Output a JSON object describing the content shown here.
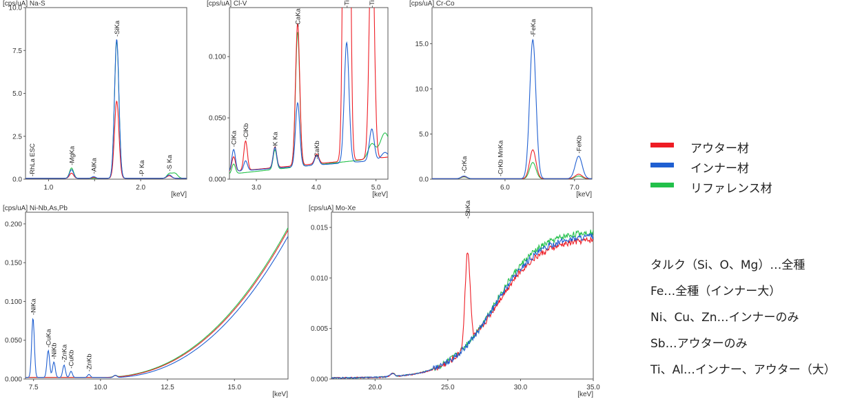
{
  "legend": {
    "items": [
      {
        "label": "アウター材",
        "color": "#ee1c24"
      },
      {
        "label": "インナー材",
        "color": "#1f5fd1"
      },
      {
        "label": "リファレンス材",
        "color": "#22c04a"
      }
    ]
  },
  "notes": [
    "タルク（Si、O、Mg）…全種",
    "Fe…全種（インナー大）",
    "Ni、Cu、Zn…インナーのみ",
    "Sb…アウターのみ",
    "Ti、Al…インナー、アウター（大）"
  ],
  "chart_data": [
    {
      "type": "line",
      "title": "[cps/uA] Na-S",
      "xlabel": "[keV]",
      "xlim": [
        0.75,
        2.5
      ],
      "ylim": [
        0,
        10
      ],
      "xticks": [
        1.0,
        1.5,
        2.0
      ],
      "xtick_labels": [
        "1.0",
        "",
        "2.0"
      ],
      "yticks": [
        0,
        2.5,
        5,
        7.5,
        10
      ],
      "ytick_labels": [
        "0.0",
        "2.5",
        "5.0",
        "7.5",
        "10.0"
      ],
      "baseline": {
        "inner": [
          0.05,
          0
        ],
        "outer": [
          0.05,
          0
        ],
        "reference": [
          0.05,
          0
        ]
      },
      "peaks": {
        "inner": [
          [
            1.25,
            0.5,
            0.022
          ],
          [
            1.49,
            0.1,
            0.02
          ],
          [
            1.74,
            8.1,
            0.024
          ],
          [
            2.31,
            0.2,
            0.025
          ]
        ],
        "outer": [
          [
            1.25,
            0.3,
            0.022
          ],
          [
            1.49,
            0.05,
            0.02
          ],
          [
            1.74,
            4.5,
            0.024
          ],
          [
            2.31,
            0.15,
            0.025
          ]
        ],
        "reference": [
          [
            1.25,
            0.6,
            0.022
          ],
          [
            1.74,
            8.0,
            0.024
          ],
          [
            2.31,
            0.25,
            0.025
          ],
          [
            2.37,
            0.3,
            0.03
          ]
        ]
      },
      "peak_labels": [
        {
          "text": "RhLa ESC",
          "x": 0.82
        },
        {
          "text": "MgKa",
          "x": 1.25
        },
        {
          "text": "AlKa",
          "x": 1.49
        },
        {
          "text": "SiKa",
          "x": 1.74
        },
        {
          "text": "P Ka",
          "x": 2.01
        },
        {
          "text": "S Ka",
          "x": 2.31
        }
      ]
    },
    {
      "type": "line",
      "title": "[cps/uA] Cl-V",
      "xlabel": "[keV]",
      "xlim": [
        2.55,
        5.2
      ],
      "ylim": [
        0,
        0.14
      ],
      "xticks": [
        3.0,
        4.0,
        5.0
      ],
      "xtick_labels": [
        "3.0",
        "4.0",
        "5.0"
      ],
      "yticks": [
        0,
        0.05,
        0.1
      ],
      "ytick_labels": [
        "0.000",
        "0.050",
        "0.100"
      ],
      "baseline": {
        "inner": [
          0.006,
          0.01
        ],
        "outer": [
          0.006,
          0.012
        ],
        "reference": [
          0.004,
          0.014
        ]
      },
      "peaks": {
        "inner": [
          [
            2.62,
            0.018,
            0.03
          ],
          [
            2.82,
            0.008,
            0.03
          ],
          [
            3.31,
            0.017,
            0.03
          ],
          [
            3.69,
            0.052,
            0.035
          ],
          [
            4.01,
            0.008,
            0.035
          ],
          [
            4.51,
            0.098,
            0.04
          ],
          [
            4.93,
            0.026,
            0.04
          ],
          [
            5.15,
            0.006,
            0.06
          ]
        ],
        "outer": [
          [
            2.62,
            0.012,
            0.03
          ],
          [
            2.82,
            0.024,
            0.03
          ],
          [
            3.31,
            0.017,
            0.03
          ],
          [
            3.69,
            0.116,
            0.035
          ],
          [
            4.01,
            0.008,
            0.035
          ],
          [
            4.51,
            0.8,
            0.04
          ],
          [
            4.93,
            0.2,
            0.04
          ]
        ],
        "reference": [
          [
            2.62,
            0.008,
            0.03
          ],
          [
            3.31,
            0.016,
            0.03
          ],
          [
            3.69,
            0.11,
            0.035
          ],
          [
            4.01,
            0.008,
            0.035
          ],
          [
            4.93,
            0.012,
            0.06
          ],
          [
            5.15,
            0.02,
            0.08
          ]
        ]
      },
      "peak_labels": [
        {
          "text": "ClKa",
          "x": 2.62
        },
        {
          "text": "ClKb",
          "x": 2.82
        },
        {
          "text": "K Ka",
          "x": 3.31
        },
        {
          "text": "CaKa",
          "x": 3.69
        },
        {
          "text": "CaKb",
          "x": 4.01
        },
        {
          "text": "TiKa",
          "x": 4.51
        },
        {
          "text": "TiKb",
          "x": 4.93
        }
      ]
    },
    {
      "type": "line",
      "title": "[cps/uA] Cr-Co",
      "xlabel": "[keV]",
      "xlim": [
        4.95,
        7.25
      ],
      "ylim": [
        0,
        19
      ],
      "xticks": [
        6.0,
        7.0
      ],
      "xtick_labels": [
        "6.0",
        "7.0"
      ],
      "yticks": [
        0,
        5,
        10,
        15
      ],
      "ytick_labels": [
        "0.0",
        "5.0",
        "10.0",
        "15.0"
      ],
      "baseline": {
        "inner": [
          0.05,
          0
        ],
        "outer": [
          0.05,
          0
        ],
        "reference": [
          0.05,
          0
        ]
      },
      "peaks": {
        "inner": [
          [
            5.41,
            0.3,
            0.04
          ],
          [
            6.4,
            15.4,
            0.045
          ],
          [
            7.06,
            2.5,
            0.05
          ]
        ],
        "outer": [
          [
            5.41,
            0.25,
            0.04
          ],
          [
            6.4,
            3.2,
            0.045
          ],
          [
            7.06,
            0.5,
            0.05
          ]
        ],
        "reference": [
          [
            5.41,
            0.2,
            0.04
          ],
          [
            6.4,
            1.8,
            0.045
          ],
          [
            7.06,
            0.3,
            0.05
          ]
        ]
      },
      "peak_labels": [
        {
          "text": "CrKa",
          "x": 5.41
        },
        {
          "text": "CrKb MnKa",
          "x": 5.93
        },
        {
          "text": "FeKa",
          "x": 6.4
        },
        {
          "text": "FeKb",
          "x": 7.06
        }
      ]
    },
    {
      "type": "line",
      "title": "[cps/uA] Ni-Nb,As,Pb",
      "xlabel": "[keV]",
      "xlim": [
        7.2,
        17.0
      ],
      "ylim": [
        0,
        0.215
      ],
      "xticks": [
        7.5,
        10.0,
        12.5,
        15.0
      ],
      "xtick_labels": [
        "7.5",
        "10.0",
        "12.5",
        "15.0"
      ],
      "yticks": [
        0,
        0.05,
        0.1,
        0.15,
        0.2
      ],
      "ytick_labels": [
        "0.000",
        "0.050",
        "0.100",
        "0.150",
        "0.200"
      ],
      "bg_curve": {
        "start": 10.0,
        "scale": 0.19,
        "power": 2.3,
        "end": 17.0
      },
      "bg_offset": {
        "inner": -0.008,
        "outer": 0.0,
        "reference": 0.003
      },
      "peaks": {
        "inner": [
          [
            7.48,
            0.077,
            0.05
          ],
          [
            8.05,
            0.035,
            0.05
          ],
          [
            8.26,
            0.02,
            0.05
          ],
          [
            8.64,
            0.016,
            0.05
          ],
          [
            8.9,
            0.008,
            0.05
          ],
          [
            9.57,
            0.004,
            0.05
          ],
          [
            10.55,
            0.003,
            0.06
          ]
        ],
        "outer": [
          [
            10.55,
            0.002,
            0.06
          ]
        ],
        "reference": [
          [
            10.55,
            0.002,
            0.06
          ]
        ]
      },
      "peak_labels": [
        {
          "text": "NiKa",
          "x": 7.48
        },
        {
          "text": "CuKa",
          "x": 8.05
        },
        {
          "text": "NiKb",
          "x": 8.26
        },
        {
          "text": "ZnKa",
          "x": 8.64
        },
        {
          "text": "CuKb",
          "x": 8.9
        },
        {
          "text": "ZnKb",
          "x": 9.57
        }
      ]
    },
    {
      "type": "line",
      "title": "[cps/uA] Mo-Xe",
      "xlabel": "[keV]",
      "xlim": [
        17.0,
        35.0
      ],
      "ylim": [
        0,
        0.0165
      ],
      "xticks": [
        20.0,
        25.0,
        30.0,
        35.0
      ],
      "xtick_labels": [
        "20.0",
        "25.0",
        "30.0",
        "35.0"
      ],
      "yticks": [
        0,
        0.005,
        0.01,
        0.015
      ],
      "ytick_labels": [
        "0.000",
        "0.005",
        "0.010",
        "0.015"
      ],
      "sigmoid": {
        "center": 28.2,
        "width": 1.55,
        "top": 0.0142,
        "base": 0.0001
      },
      "sigmoid_scale": {
        "inner": 1.0,
        "outer": 0.975,
        "reference": 1.03
      },
      "peaks": {
        "inner": [
          [
            21.2,
            0.0003,
            0.15
          ]
        ],
        "outer": [
          [
            21.2,
            0.0003,
            0.15
          ],
          [
            26.36,
            0.0094,
            0.17
          ]
        ],
        "reference": [
          [
            21.2,
            0.0003,
            0.15
          ]
        ]
      },
      "peak_labels": [
        {
          "text": "SbKa",
          "x": 26.36
        }
      ]
    }
  ]
}
